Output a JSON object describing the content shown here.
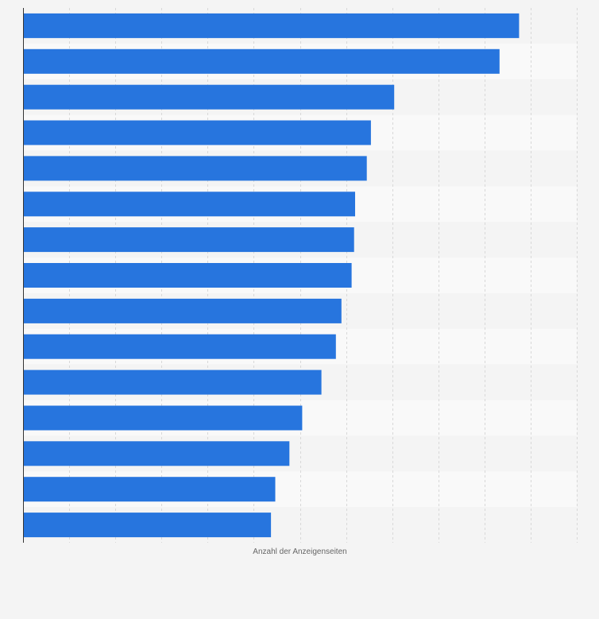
{
  "chart_data": {
    "type": "bar",
    "orientation": "horizontal",
    "title": "",
    "xlabel": "Anzahl der Anzeigenseiten",
    "ylabel": "",
    "categories": [
      "",
      "",
      "",
      "",
      "",
      "",
      "",
      "",
      "",
      "",
      "",
      "",
      "",
      "",
      ""
    ],
    "values": [
      3225,
      3098,
      2413,
      2262,
      2235,
      2159,
      2152,
      2136,
      2070,
      2034,
      1940,
      1815,
      1732,
      1640,
      1612
    ],
    "xlim": [
      0,
      3600
    ],
    "grid": true,
    "bar_color": "#2775de"
  },
  "colors": {
    "background": "#f4f4f4",
    "band_light": "#f9f9f9",
    "band_dark": "#f4f4f4",
    "grid": "#d8d8d8",
    "axis": "#333333",
    "bar": "#2775de"
  }
}
